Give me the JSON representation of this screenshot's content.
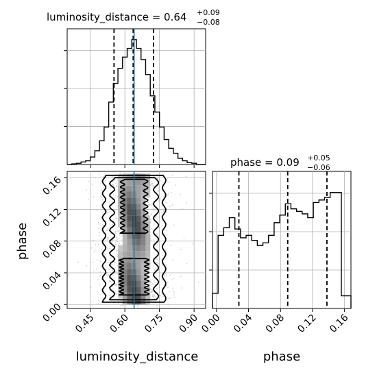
{
  "chart_data": {
    "type": "corner",
    "params": [
      "luminosity_distance",
      "phase"
    ],
    "truth": {
      "luminosity_distance": 0.64,
      "color": "#1f77b4"
    },
    "titles": {
      "luminosity_distance": {
        "prefix": "luminosity_distance = 0.64",
        "plus": "+0.09",
        "minus": "−0.08"
      },
      "phase": {
        "prefix": "phase = 0.09",
        "plus": "+0.05",
        "minus": "−0.06"
      }
    },
    "quantiles": {
      "luminosity_distance": [
        0.553,
        0.636,
        0.724
      ],
      "phase": [
        0.028,
        0.089,
        0.138
      ]
    },
    "axes": {
      "luminosity_distance": {
        "label": "luminosity_distance",
        "range": [
          0.35,
          0.95
        ],
        "ticks": [
          0.45,
          0.6,
          0.75,
          0.9
        ],
        "tick_labels": [
          "0.45",
          "0.60",
          "0.75",
          "0.90"
        ]
      },
      "phase": {
        "label": "phase",
        "range": [
          -0.005,
          0.168
        ],
        "ticks": [
          0.0,
          0.04,
          0.08,
          0.12,
          0.16
        ],
        "tick_labels": [
          "0.00",
          "0.04",
          "0.08",
          "0.12",
          "0.16"
        ]
      }
    },
    "hist_luminosity_distance": {
      "bins": [
        0.35,
        0.37,
        0.39,
        0.41,
        0.43,
        0.45,
        0.47,
        0.49,
        0.51,
        0.53,
        0.55,
        0.57,
        0.59,
        0.61,
        0.63,
        0.65,
        0.67,
        0.69,
        0.71,
        0.73,
        0.75,
        0.77,
        0.79,
        0.81,
        0.83,
        0.85,
        0.87,
        0.89,
        0.91,
        0.93,
        0.95
      ],
      "values": [
        0.0,
        0.005,
        0.01,
        0.02,
        0.03,
        0.06,
        0.11,
        0.19,
        0.3,
        0.5,
        0.65,
        0.77,
        0.86,
        0.93,
        1.0,
        0.93,
        0.84,
        0.72,
        0.55,
        0.42,
        0.3,
        0.2,
        0.13,
        0.09,
        0.05,
        0.03,
        0.015,
        0.01,
        0.0,
        0.0
      ]
    },
    "hist_phase": {
      "bins": [
        -0.005,
        -0.0015,
        0.002,
        0.0055,
        0.009,
        0.0125,
        0.016,
        0.0195,
        0.023,
        0.0265,
        0.03,
        0.0335,
        0.037,
        0.0405,
        0.044,
        0.0475,
        0.051,
        0.0545,
        0.058,
        0.0615,
        0.065,
        0.0685,
        0.072,
        0.0755,
        0.079,
        0.0825,
        0.086,
        0.0895,
        0.093,
        0.0965,
        0.1,
        0.1035,
        0.107,
        0.1105,
        0.114,
        0.1175,
        0.121,
        0.1245,
        0.128,
        0.1315,
        0.135,
        0.1385,
        0.142,
        0.1455,
        0.149,
        0.1525,
        0.156,
        0.1595,
        0.163,
        0.1665,
        0.168
      ],
      "values": [
        0.12,
        0.12,
        0.58,
        0.58,
        0.64,
        0.64,
        0.72,
        0.72,
        0.63,
        0.63,
        0.56,
        0.56,
        0.58,
        0.58,
        0.54,
        0.54,
        0.5,
        0.5,
        0.52,
        0.52,
        0.58,
        0.58,
        0.68,
        0.68,
        0.74,
        0.74,
        0.83,
        0.83,
        0.79,
        0.79,
        0.77,
        0.77,
        0.75,
        0.75,
        0.72,
        0.72,
        0.84,
        0.84,
        0.86,
        0.86,
        0.88,
        0.88,
        0.92,
        0.92,
        0.92,
        0.92,
        0.1,
        0.1,
        0.1,
        0.1
      ]
    },
    "grid": true
  }
}
